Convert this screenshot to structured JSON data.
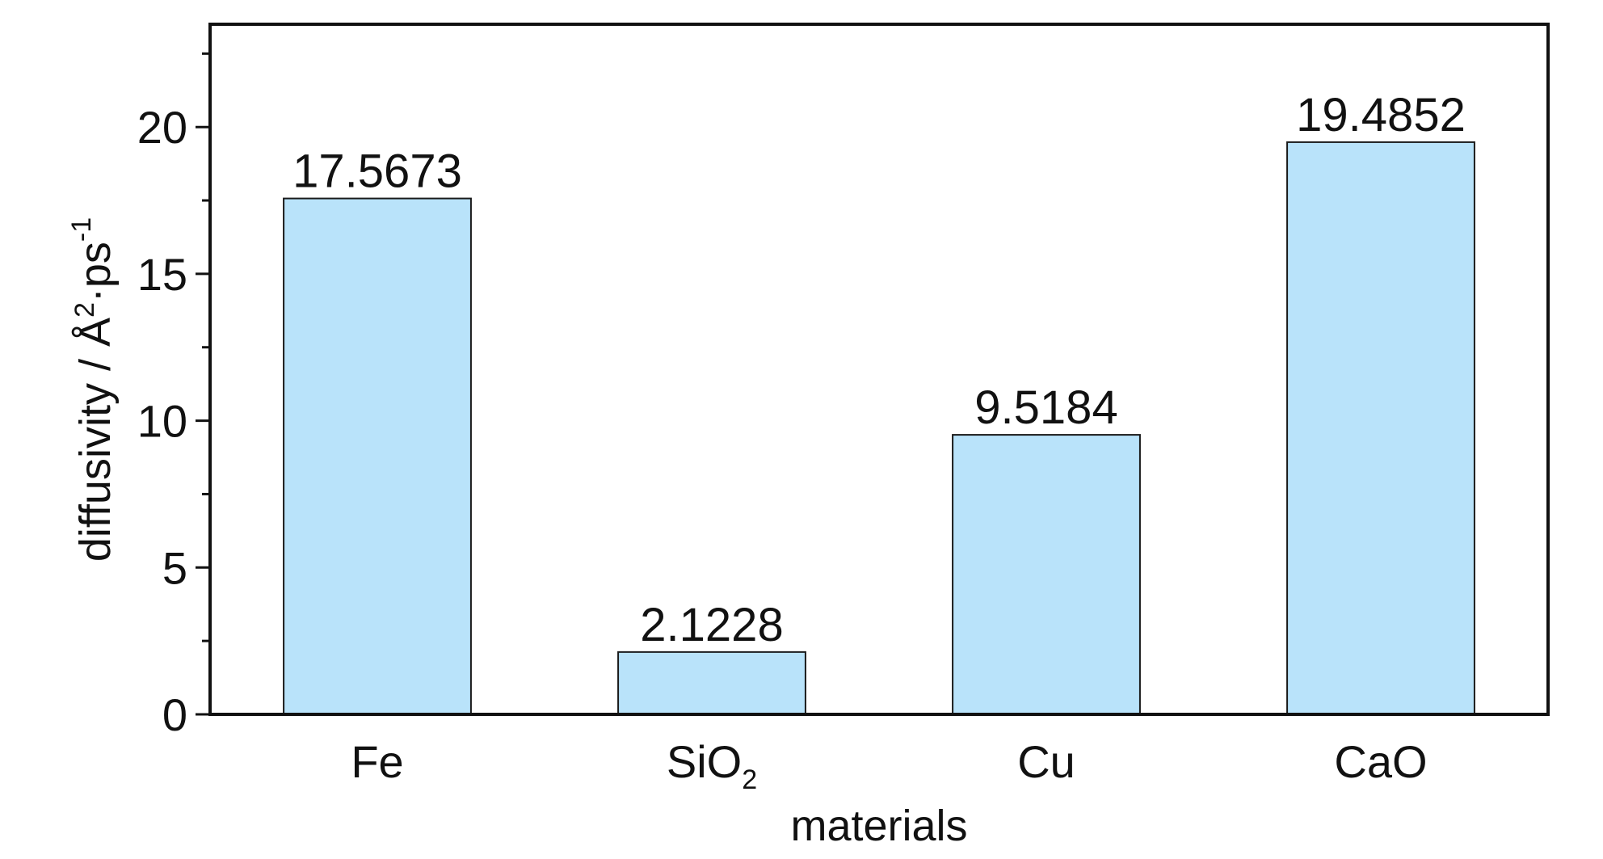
{
  "chart_data": {
    "type": "bar",
    "categories": [
      "Fe",
      "SiO2",
      "Cu",
      "CaO"
    ],
    "category_display": [
      {
        "main": "Fe",
        "sub": ""
      },
      {
        "main": "SiO",
        "sub": "2"
      },
      {
        "main": "Cu",
        "sub": ""
      },
      {
        "main": "CaO",
        "sub": ""
      }
    ],
    "values": [
      17.5673,
      2.1228,
      9.5184,
      19.4852
    ],
    "value_labels": [
      "17.5673",
      "2.1228",
      "9.5184",
      "19.4852"
    ],
    "xlabel": "materials",
    "ylabel": {
      "pre": "diffusivity / Å",
      "sup1": "2",
      "mid": "·ps",
      "sup2": "-1"
    },
    "ylim": [
      0,
      23.5
    ],
    "yticks": [
      0,
      5,
      10,
      15,
      20
    ],
    "ytick_labels": [
      "0",
      "5",
      "10",
      "15",
      "20"
    ],
    "minor_tick_step": 2.5,
    "bar_color": "#b9e3fa",
    "grid": false,
    "legend": "none"
  }
}
